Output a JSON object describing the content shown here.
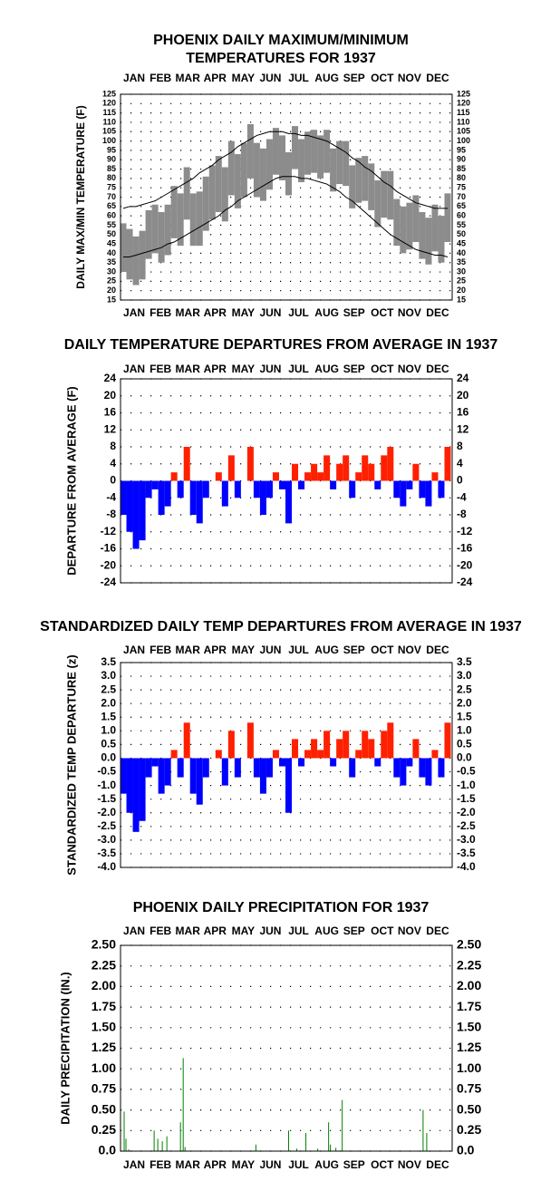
{
  "chart_data": [
    {
      "type": "band",
      "title": [
        "PHOENIX DAILY MAXIMUM/MINIMUM",
        "TEMPERATURES FOR 1937"
      ],
      "ylabel": "DAILY MAX/MIN TEMPERATURE (F)",
      "xlim": [
        1,
        366
      ],
      "month_ticks": [
        {
          "value": 16,
          "label": "JAN"
        },
        {
          "value": 45,
          "label": "FEB"
        },
        {
          "value": 75,
          "label": "MAR"
        },
        {
          "value": 105,
          "label": "APR"
        },
        {
          "value": 136,
          "label": "MAY"
        },
        {
          "value": 166,
          "label": "JUN"
        },
        {
          "value": 197,
          "label": "JUL"
        },
        {
          "value": 228,
          "label": "AUG"
        },
        {
          "value": 258,
          "label": "SEP"
        },
        {
          "value": 289,
          "label": "OCT"
        },
        {
          "value": 319,
          "label": "NOV"
        },
        {
          "value": 350,
          "label": "DEC"
        }
      ],
      "x": [
        4,
        11,
        18,
        25,
        32,
        39,
        46,
        53,
        60,
        67,
        74,
        81,
        88,
        95,
        102,
        109,
        116,
        123,
        130,
        137,
        144,
        151,
        158,
        165,
        172,
        179,
        186,
        193,
        200,
        207,
        214,
        221,
        228,
        235,
        242,
        249,
        256,
        263,
        270,
        277,
        284,
        291,
        298,
        305,
        312,
        319,
        326,
        333,
        340,
        347,
        354,
        361
      ],
      "ylim": [
        15,
        125
      ],
      "yticks": [
        15,
        20,
        25,
        30,
        35,
        40,
        45,
        50,
        55,
        60,
        65,
        70,
        75,
        80,
        85,
        90,
        95,
        100,
        105,
        110,
        115,
        120,
        125
      ],
      "band_color": "#8c8c8c",
      "normal_color": "#000000",
      "max": [
        56,
        53,
        49,
        52,
        63,
        66,
        62,
        66,
        76,
        72,
        86,
        72,
        73,
        81,
        87,
        92,
        86,
        100,
        93,
        99,
        109,
        99,
        96,
        101,
        107,
        103,
        94,
        108,
        101,
        105,
        106,
        103,
        106,
        96,
        100,
        100,
        87,
        91,
        92,
        88,
        79,
        84,
        84,
        69,
        65,
        67,
        71,
        62,
        59,
        66,
        60,
        72
      ],
      "min": [
        30,
        26,
        23,
        26,
        37,
        40,
        35,
        39,
        48,
        44,
        58,
        44,
        44,
        52,
        58,
        62,
        57,
        71,
        64,
        70,
        80,
        70,
        68,
        74,
        82,
        79,
        71,
        85,
        78,
        82,
        83,
        80,
        83,
        73,
        77,
        76,
        64,
        67,
        68,
        63,
        54,
        59,
        58,
        44,
        40,
        42,
        46,
        37,
        34,
        41,
        35,
        46
      ],
      "normal_max": [
        64,
        65,
        65,
        66,
        67,
        68,
        70,
        72,
        74,
        76,
        78,
        80,
        83,
        85,
        87,
        90,
        92,
        94,
        97,
        99,
        101,
        103,
        104,
        105,
        105,
        105,
        104,
        104,
        103,
        103,
        102,
        101,
        100,
        98,
        96,
        94,
        91,
        89,
        86,
        84,
        81,
        78,
        76,
        73,
        71,
        69,
        67,
        66,
        65,
        64,
        64,
        64
      ],
      "normal_min": [
        38,
        38,
        39,
        40,
        41,
        42,
        43,
        45,
        46,
        48,
        50,
        52,
        54,
        56,
        58,
        60,
        63,
        65,
        68,
        70,
        72,
        74,
        76,
        78,
        80,
        81,
        81,
        81,
        80,
        80,
        79,
        78,
        77,
        75,
        73,
        70,
        68,
        65,
        62,
        59,
        56,
        53,
        50,
        48,
        46,
        44,
        42,
        41,
        40,
        39,
        39,
        38
      ]
    },
    {
      "type": "bar",
      "title": [
        "DAILY TEMPERATURE DEPARTURES FROM AVERAGE IN 1937"
      ],
      "ylabel": "DEPARTURE FROM AVERAGE (F)",
      "xlim": [
        1,
        366
      ],
      "month_ticks": [
        {
          "value": 16,
          "label": "JAN"
        },
        {
          "value": 45,
          "label": "FEB"
        },
        {
          "value": 75,
          "label": "MAR"
        },
        {
          "value": 105,
          "label": "APR"
        },
        {
          "value": 136,
          "label": "MAY"
        },
        {
          "value": 166,
          "label": "JUN"
        },
        {
          "value": 197,
          "label": "JUL"
        },
        {
          "value": 228,
          "label": "AUG"
        },
        {
          "value": 258,
          "label": "SEP"
        },
        {
          "value": 289,
          "label": "OCT"
        },
        {
          "value": 319,
          "label": "NOV"
        },
        {
          "value": 350,
          "label": "DEC"
        }
      ],
      "x": [
        4,
        11,
        18,
        25,
        32,
        39,
        46,
        53,
        60,
        67,
        74,
        81,
        88,
        95,
        102,
        109,
        116,
        123,
        130,
        137,
        144,
        151,
        158,
        165,
        172,
        179,
        186,
        193,
        200,
        207,
        214,
        221,
        228,
        235,
        242,
        249,
        256,
        263,
        270,
        277,
        284,
        291,
        298,
        305,
        312,
        319,
        326,
        333,
        340,
        347,
        354,
        361
      ],
      "bar_width": 7,
      "ylim": [
        -24,
        24
      ],
      "yticks": [
        -24,
        -20,
        -16,
        -12,
        -8,
        -4,
        0,
        4,
        8,
        12,
        16,
        20,
        24
      ],
      "pos_color": "#ff2000",
      "neg_color": "#0000ff",
      "values": [
        -8,
        -12,
        -16,
        -14,
        -4,
        -2,
        -8,
        -6,
        2,
        -4,
        8,
        -8,
        -10,
        -4,
        0,
        2,
        -6,
        6,
        -4,
        0,
        8,
        -4,
        -8,
        -4,
        2,
        -2,
        -10,
        4,
        -2,
        2,
        4,
        2,
        6,
        -2,
        4,
        6,
        -4,
        2,
        6,
        4,
        -2,
        6,
        8,
        -4,
        -6,
        -2,
        4,
        -4,
        -6,
        2,
        -4,
        8
      ]
    },
    {
      "type": "bar",
      "title": [
        "STANDARDIZED DAILY TEMP DEPARTURES FROM AVERAGE IN 1937"
      ],
      "ylabel": "STANDARDIZED TEMP DEPARTURE (z)",
      "xlim": [
        1,
        366
      ],
      "month_ticks": [
        {
          "value": 16,
          "label": "JAN"
        },
        {
          "value": 45,
          "label": "FEB"
        },
        {
          "value": 75,
          "label": "MAR"
        },
        {
          "value": 105,
          "label": "APR"
        },
        {
          "value": 136,
          "label": "MAY"
        },
        {
          "value": 166,
          "label": "JUN"
        },
        {
          "value": 197,
          "label": "JUL"
        },
        {
          "value": 228,
          "label": "AUG"
        },
        {
          "value": 258,
          "label": "SEP"
        },
        {
          "value": 289,
          "label": "OCT"
        },
        {
          "value": 319,
          "label": "NOV"
        },
        {
          "value": 350,
          "label": "DEC"
        }
      ],
      "x": [
        4,
        11,
        18,
        25,
        32,
        39,
        46,
        53,
        60,
        67,
        74,
        81,
        88,
        95,
        102,
        109,
        116,
        123,
        130,
        137,
        144,
        151,
        158,
        165,
        172,
        179,
        186,
        193,
        200,
        207,
        214,
        221,
        228,
        235,
        242,
        249,
        256,
        263,
        270,
        277,
        284,
        291,
        298,
        305,
        312,
        319,
        326,
        333,
        340,
        347,
        354,
        361
      ],
      "bar_width": 7,
      "ylim": [
        -4,
        3.5
      ],
      "yticks": [
        {
          "value": -4,
          "label": "-4.0"
        },
        {
          "value": -3.5,
          "label": "-3.5"
        },
        {
          "value": -3,
          "label": "-3.0"
        },
        {
          "value": -2.5,
          "label": "-2.5"
        },
        {
          "value": -2,
          "label": "-2.0"
        },
        {
          "value": -1.5,
          "label": "-1.5"
        },
        {
          "value": -1,
          "label": "-1.0"
        },
        {
          "value": -0.5,
          "label": "-0.5"
        },
        {
          "value": 0,
          "label": "0.0"
        },
        {
          "value": 0.5,
          "label": "0.5"
        },
        {
          "value": 1,
          "label": "1.0"
        },
        {
          "value": 1.5,
          "label": "1.5"
        },
        {
          "value": 2,
          "label": "2.0"
        },
        {
          "value": 2.5,
          "label": "2.5"
        },
        {
          "value": 3,
          "label": "3.0"
        },
        {
          "value": 3.5,
          "label": "3.5"
        }
      ],
      "pos_color": "#ff2000",
      "neg_color": "#0000ff",
      "values": [
        -1.3,
        -2.0,
        -2.7,
        -2.3,
        -0.7,
        -0.3,
        -1.3,
        -1.0,
        0.3,
        -0.7,
        1.3,
        -1.3,
        -1.7,
        -0.7,
        0,
        0.3,
        -1.0,
        1.0,
        -0.7,
        0,
        1.3,
        -0.7,
        -1.3,
        -0.7,
        0.3,
        -0.3,
        -2.0,
        0.7,
        -0.3,
        0.3,
        0.7,
        0.3,
        1.0,
        -0.3,
        0.7,
        1.0,
        -0.7,
        0.3,
        1.0,
        0.7,
        -0.3,
        1.0,
        1.3,
        -0.7,
        -1.0,
        -0.3,
        0.7,
        -0.7,
        -1.0,
        0.3,
        -0.7,
        1.3
      ]
    },
    {
      "type": "bar",
      "title": [
        "PHOENIX DAILY PRECIPITATION FOR 1937"
      ],
      "ylabel": "DAILY PRECIPITATION (IN.)",
      "xlim": [
        1,
        366
      ],
      "month_ticks": [
        {
          "value": 16,
          "label": "JAN"
        },
        {
          "value": 45,
          "label": "FEB"
        },
        {
          "value": 75,
          "label": "MAR"
        },
        {
          "value": 105,
          "label": "APR"
        },
        {
          "value": 136,
          "label": "MAY"
        },
        {
          "value": 166,
          "label": "JUN"
        },
        {
          "value": 197,
          "label": "JUL"
        },
        {
          "value": 228,
          "label": "AUG"
        },
        {
          "value": 258,
          "label": "SEP"
        },
        {
          "value": 289,
          "label": "OCT"
        },
        {
          "value": 319,
          "label": "NOV"
        },
        {
          "value": 350,
          "label": "DEC"
        }
      ],
      "x": [
        5,
        7,
        10,
        38,
        42,
        47,
        52,
        67,
        70,
        72,
        150,
        186,
        195,
        205,
        218,
        230,
        232,
        238,
        245,
        334,
        338
      ],
      "bar_width": 1,
      "ylim": [
        0,
        2.5
      ],
      "yticks": [
        {
          "value": 0,
          "label": "0.0"
        },
        {
          "value": 0.25,
          "label": "0.25"
        },
        {
          "value": 0.5,
          "label": "0.50"
        },
        {
          "value": 0.75,
          "label": "0.75"
        },
        {
          "value": 1,
          "label": "1.00"
        },
        {
          "value": 1.25,
          "label": "1.25"
        },
        {
          "value": 1.5,
          "label": "1.50"
        },
        {
          "value": 1.75,
          "label": "1.75"
        },
        {
          "value": 2,
          "label": "2.00"
        },
        {
          "value": 2.25,
          "label": "2.25"
        },
        {
          "value": 2.5,
          "label": "2.50"
        }
      ],
      "pos_color": "#008000",
      "neg_color": "#008000",
      "values": [
        0.48,
        0.15,
        0.02,
        0.25,
        0.15,
        0.12,
        0.18,
        0.35,
        1.13,
        0.05,
        0.08,
        0.25,
        0.03,
        0.22,
        0.03,
        0.35,
        0.08,
        0.04,
        0.62,
        0.5,
        0.22
      ]
    }
  ]
}
